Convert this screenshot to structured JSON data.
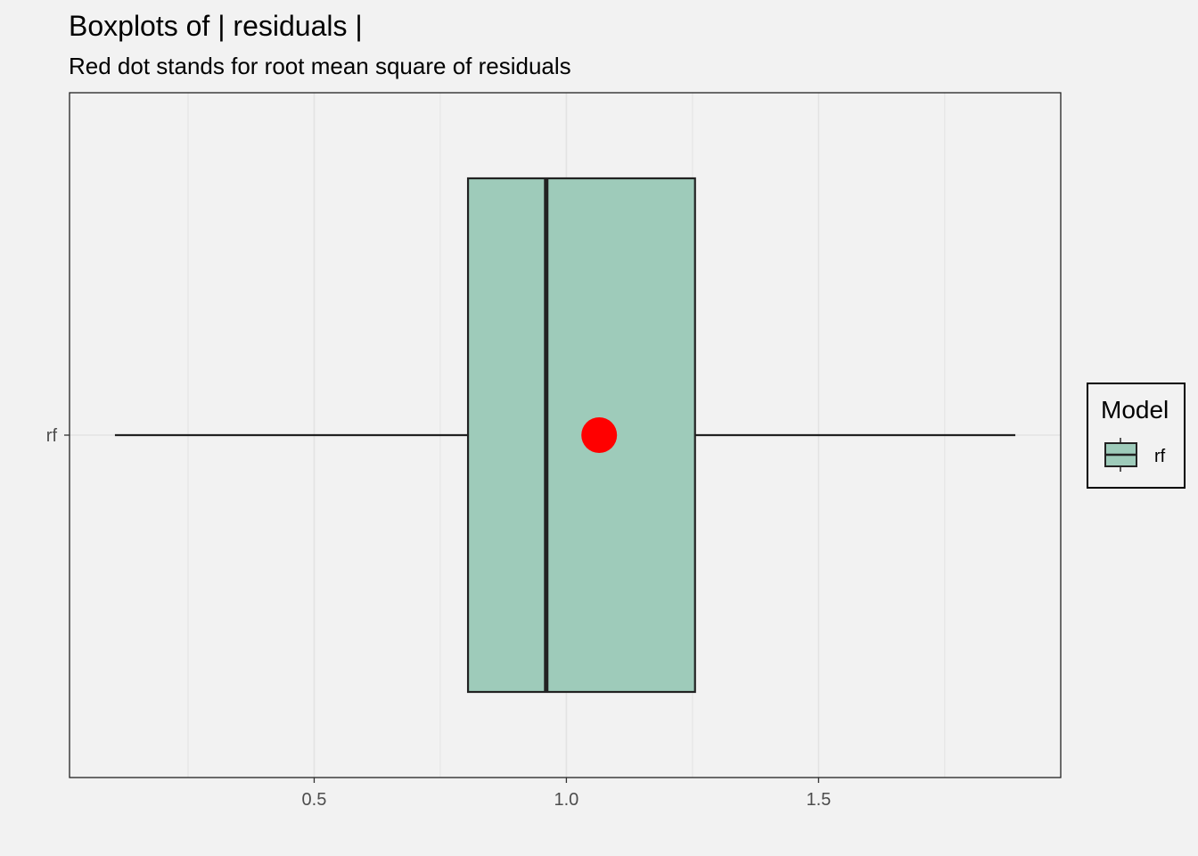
{
  "chart_data": {
    "type": "boxplot",
    "title": "Boxplots of | residuals |",
    "subtitle": "Red dot stands for root mean square of residuals",
    "xlabel": "",
    "ylabel": "",
    "xlim": [
      0.015,
      1.98
    ],
    "x_ticks": [
      0.5,
      1.0,
      1.5
    ],
    "x_tick_labels": [
      "0.5",
      "1.0",
      "1.5"
    ],
    "x_minor_ticks": [
      0.25,
      0.75,
      1.25,
      1.75
    ],
    "categories": [
      "rf"
    ],
    "boxes": [
      {
        "category": "rf",
        "whisker_low": 0.105,
        "q1": 0.805,
        "median": 0.96,
        "q3": 1.255,
        "whisker_high": 1.89,
        "rmse": 1.065
      }
    ],
    "grid": true,
    "legend": {
      "title": "Model",
      "entries": [
        "rf"
      ],
      "position": "right"
    },
    "colors": {
      "box_fill": "#9ecbba",
      "box_stroke": "#222222",
      "rmse_dot": "#ff0000",
      "panel_border": "#222222",
      "grid": "#e3e3e3",
      "background": "#f2f2f2"
    }
  }
}
